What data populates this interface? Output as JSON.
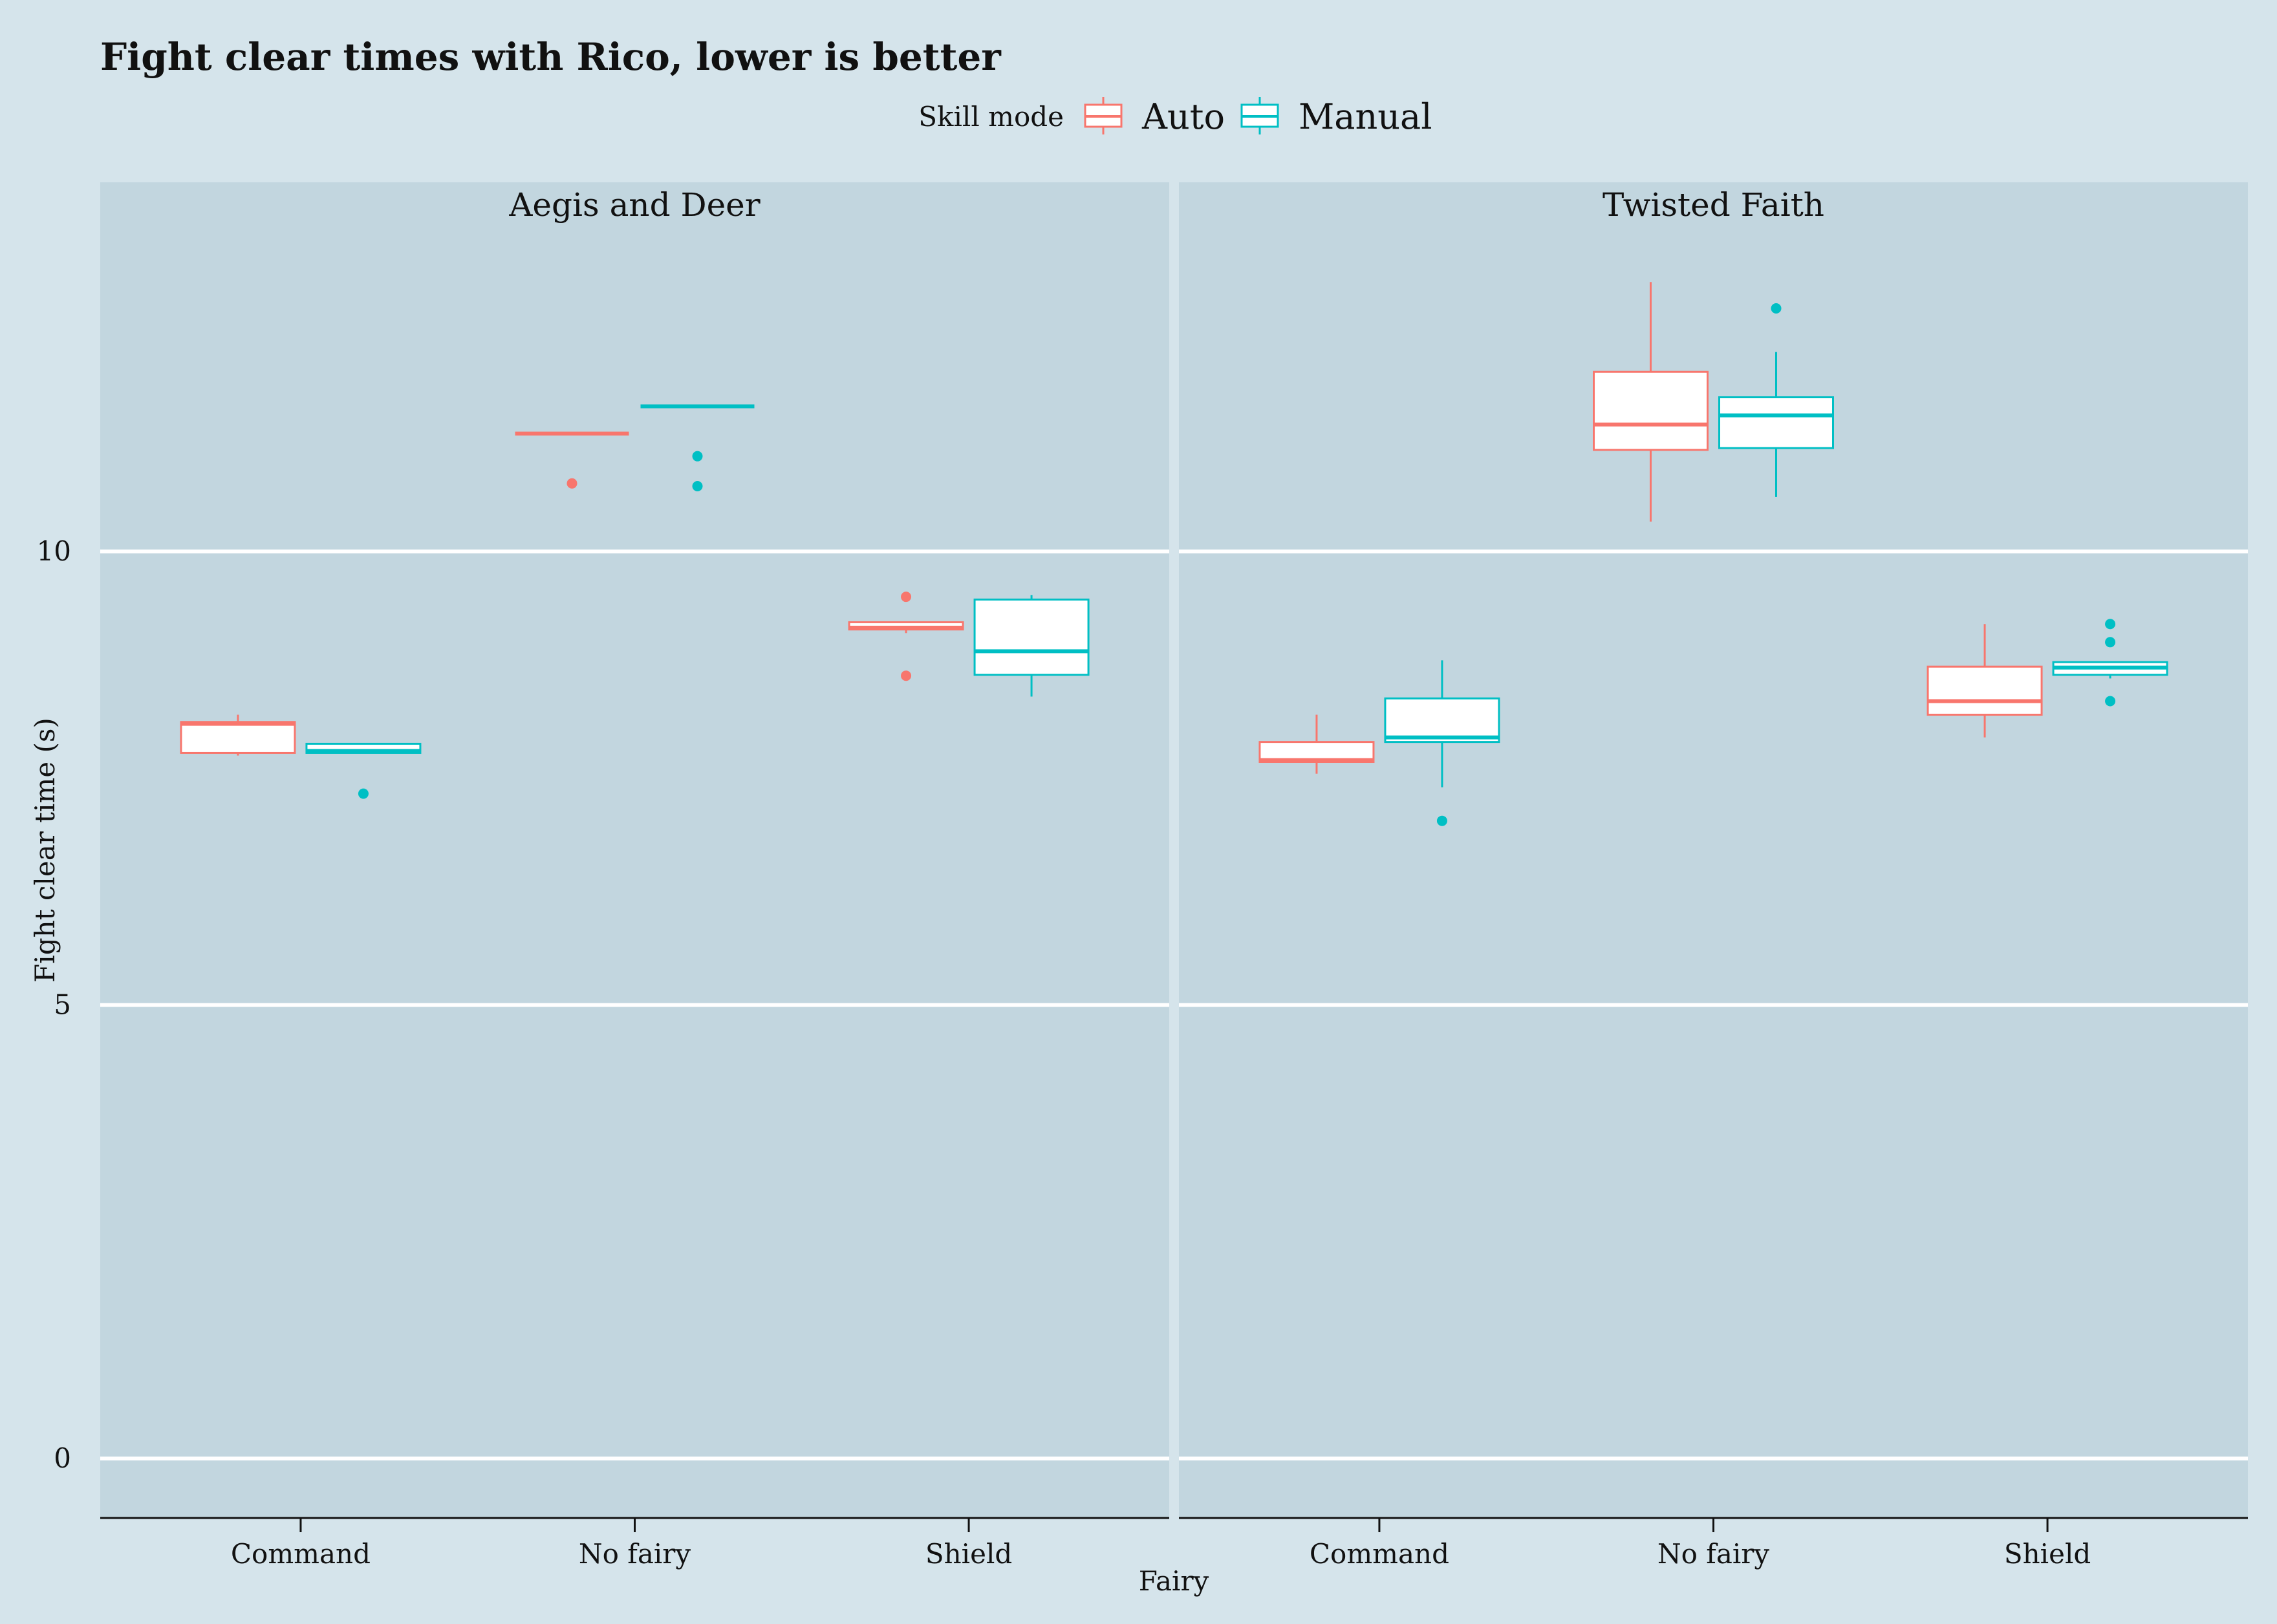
{
  "chart_data": {
    "type": "boxplot",
    "title": "Fight clear times with Rico, lower is better",
    "xlabel": "Fairy",
    "ylabel": "Fight clear time (s)",
    "ylim": [
      -0.65,
      14.1
    ],
    "yticks": [
      0,
      5,
      10
    ],
    "categories": [
      "Command",
      "No fairy",
      "Shield"
    ],
    "grid": "horizontal major lines only",
    "legend": {
      "position": "top",
      "title": "Skill mode",
      "entries": [
        "Auto",
        "Manual"
      ]
    },
    "colors": {
      "Auto": "#f8766d",
      "Manual": "#00bfc4",
      "background": "#d5e4eb",
      "panel": "#c2d6df"
    },
    "facets": [
      {
        "name": "Aegis and Deer",
        "boxes": [
          {
            "category": "Command",
            "series": "Auto",
            "lower_whisker": 7.75,
            "q1": 7.78,
            "median": 8.1,
            "q3": 8.12,
            "upper_whisker": 8.2,
            "outliers": []
          },
          {
            "category": "Command",
            "series": "Manual",
            "lower_whisker": 7.78,
            "q1": 7.78,
            "median": 7.8,
            "q3": 7.88,
            "upper_whisker": 7.88,
            "outliers": [
              7.33
            ]
          },
          {
            "category": "No fairy",
            "series": "Auto",
            "lower_whisker": 11.3,
            "q1": 11.3,
            "median": 11.3,
            "q3": 11.3,
            "upper_whisker": 11.3,
            "outliers": [
              10.75
            ]
          },
          {
            "category": "No fairy",
            "series": "Manual",
            "lower_whisker": 11.6,
            "q1": 11.6,
            "median": 11.6,
            "q3": 11.6,
            "upper_whisker": 11.6,
            "outliers": [
              11.05,
              10.72
            ]
          },
          {
            "category": "Shield",
            "series": "Auto",
            "lower_whisker": 9.1,
            "q1": 9.14,
            "median": 9.16,
            "q3": 9.22,
            "upper_whisker": 9.22,
            "outliers": [
              9.5,
              8.63
            ]
          },
          {
            "category": "Shield",
            "series": "Manual",
            "lower_whisker": 8.4,
            "q1": 8.64,
            "median": 8.9,
            "q3": 9.47,
            "upper_whisker": 9.52,
            "outliers": []
          }
        ]
      },
      {
        "name": "Twisted Faith",
        "boxes": [
          {
            "category": "Command",
            "series": "Auto",
            "lower_whisker": 7.55,
            "q1": 7.68,
            "median": 7.7,
            "q3": 7.9,
            "upper_whisker": 8.2,
            "outliers": []
          },
          {
            "category": "Command",
            "series": "Manual",
            "lower_whisker": 7.4,
            "q1": 7.9,
            "median": 7.95,
            "q3": 8.38,
            "upper_whisker": 8.8,
            "outliers": [
              7.03
            ]
          },
          {
            "category": "No fairy",
            "series": "Auto",
            "lower_whisker": 10.33,
            "q1": 11.12,
            "median": 11.4,
            "q3": 11.98,
            "upper_whisker": 12.97,
            "outliers": []
          },
          {
            "category": "No fairy",
            "series": "Manual",
            "lower_whisker": 10.6,
            "q1": 11.14,
            "median": 11.5,
            "q3": 11.7,
            "upper_whisker": 12.2,
            "outliers": [
              12.68
            ]
          },
          {
            "category": "Shield",
            "series": "Auto",
            "lower_whisker": 7.95,
            "q1": 8.2,
            "median": 8.35,
            "q3": 8.73,
            "upper_whisker": 9.2,
            "outliers": []
          },
          {
            "category": "Shield",
            "series": "Manual",
            "lower_whisker": 8.6,
            "q1": 8.64,
            "median": 8.72,
            "q3": 8.78,
            "upper_whisker": 8.78,
            "outliers": [
              9.2,
              9.0,
              8.35
            ]
          }
        ]
      }
    ]
  }
}
